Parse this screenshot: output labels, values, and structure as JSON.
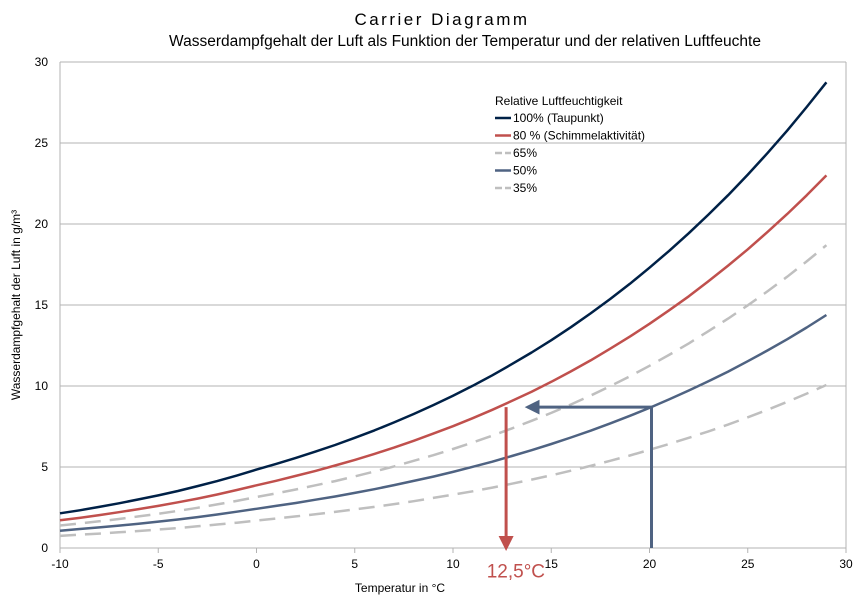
{
  "chart_data": {
    "type": "line",
    "title": "Carrier Diagramm",
    "subtitle": "Wasserdampfgehalt der Luft als Funktion der Temperatur und der relativen Luftfeuchte",
    "xlabel": "Temperatur in °C",
    "ylabel": "Wasserdampfgehalt der Luft in g/m³",
    "xlim": [
      -10,
      30
    ],
    "ylim": [
      0,
      30
    ],
    "xticks": [
      -10,
      -5,
      0,
      5,
      10,
      15,
      20,
      25,
      30
    ],
    "yticks": [
      0,
      5,
      10,
      15,
      20,
      25,
      30
    ],
    "grid": "horizontal",
    "legend_title": "Relative Luftfeuchtigkeit",
    "legend_position": "top-right",
    "x": [
      -10,
      -9,
      -8,
      -7,
      -6,
      -5,
      -4,
      -3,
      -2,
      -1,
      0,
      1,
      2,
      3,
      4,
      5,
      6,
      7,
      8,
      9,
      10,
      11,
      12,
      13,
      14,
      15,
      16,
      17,
      18,
      19,
      20,
      21,
      22,
      23,
      24,
      25,
      26,
      27,
      28,
      29
    ],
    "series": [
      {
        "name": "100% (Taupunkt)",
        "color": "#002147",
        "style": "solid",
        "values": [
          2.14,
          2.33,
          2.54,
          2.76,
          3.0,
          3.25,
          3.52,
          3.82,
          4.13,
          4.47,
          4.84,
          5.19,
          5.56,
          5.95,
          6.36,
          6.8,
          7.26,
          7.75,
          8.27,
          8.82,
          9.4,
          10.01,
          10.66,
          11.35,
          12.07,
          12.83,
          13.63,
          14.48,
          15.37,
          16.31,
          17.3,
          18.34,
          19.43,
          20.58,
          21.78,
          23.05,
          24.37,
          25.76,
          27.22,
          28.75
        ]
      },
      {
        "name": "80 % (Schimmelaktivität)",
        "color": "#c0504d",
        "style": "solid",
        "values": [
          1.71,
          1.86,
          2.03,
          2.21,
          2.4,
          2.6,
          2.82,
          3.05,
          3.3,
          3.58,
          3.87,
          4.15,
          4.45,
          4.76,
          5.09,
          5.44,
          5.81,
          6.2,
          6.62,
          7.06,
          7.52,
          8.01,
          8.53,
          9.08,
          9.65,
          10.26,
          10.9,
          11.58,
          12.3,
          13.05,
          13.84,
          14.67,
          15.54,
          16.46,
          17.43,
          18.44,
          19.5,
          20.61,
          21.77,
          23.0
        ]
      },
      {
        "name": "65%",
        "color": "#bfbfbf",
        "style": "dashed",
        "values": [
          1.39,
          1.51,
          1.65,
          1.79,
          1.95,
          2.11,
          2.29,
          2.48,
          2.69,
          2.91,
          3.15,
          3.37,
          3.61,
          3.87,
          4.13,
          4.42,
          4.72,
          5.04,
          5.38,
          5.73,
          6.11,
          6.51,
          6.93,
          7.38,
          7.85,
          8.34,
          8.86,
          9.41,
          9.99,
          10.6,
          11.25,
          11.92,
          12.63,
          13.38,
          14.16,
          14.98,
          15.84,
          16.74,
          17.69,
          18.69
        ]
      },
      {
        "name": "50%",
        "color": "#4f6382",
        "style": "solid",
        "values": [
          1.07,
          1.17,
          1.27,
          1.38,
          1.5,
          1.63,
          1.76,
          1.91,
          2.07,
          2.24,
          2.42,
          2.6,
          2.78,
          2.98,
          3.18,
          3.4,
          3.63,
          3.88,
          4.14,
          4.41,
          4.7,
          5.01,
          5.33,
          5.68,
          6.04,
          6.42,
          6.82,
          7.24,
          7.69,
          8.16,
          8.65,
          9.17,
          9.72,
          10.29,
          10.89,
          11.53,
          12.19,
          12.88,
          13.61,
          14.38
        ]
      },
      {
        "name": "35%",
        "color": "#bfbfbf",
        "style": "dashed",
        "values": [
          0.75,
          0.82,
          0.89,
          0.97,
          1.05,
          1.14,
          1.23,
          1.34,
          1.45,
          1.56,
          1.69,
          1.82,
          1.95,
          2.08,
          2.23,
          2.38,
          2.54,
          2.71,
          2.89,
          3.09,
          3.29,
          3.5,
          3.73,
          3.97,
          4.22,
          4.49,
          4.77,
          5.07,
          5.38,
          5.71,
          6.06,
          6.42,
          6.8,
          7.2,
          7.62,
          8.07,
          8.53,
          9.02,
          9.53,
          10.06
        ]
      }
    ],
    "annotations": [
      {
        "kind": "arrow-path",
        "color": "#4f6382",
        "points": [
          [
            20.1,
            0
          ],
          [
            20.1,
            8.7
          ],
          [
            13.8,
            8.7
          ]
        ]
      },
      {
        "kind": "arrow-path",
        "color": "#c0504d",
        "points": [
          [
            12.7,
            8.7
          ],
          [
            12.7,
            0
          ]
        ]
      },
      {
        "kind": "label",
        "text": "12,5°C",
        "color": "#c0504d",
        "at": [
          13.2,
          -1.5
        ]
      }
    ]
  }
}
